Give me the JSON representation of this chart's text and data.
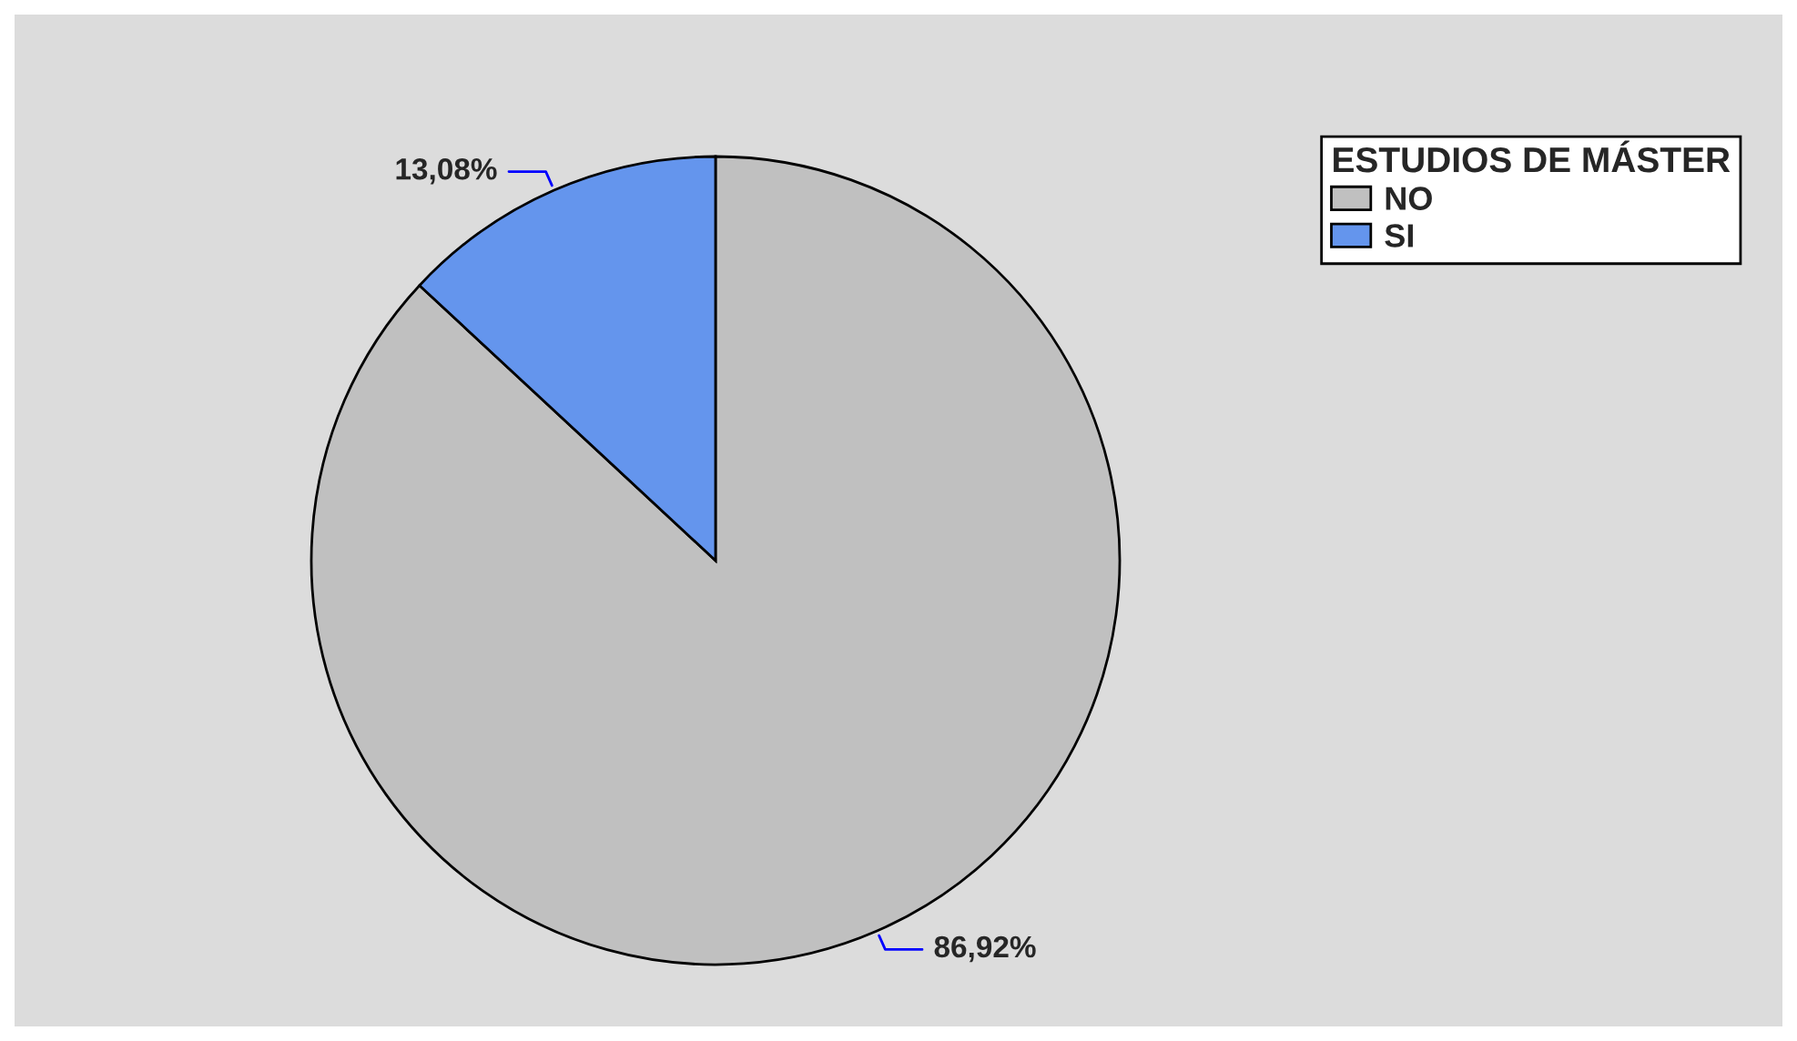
{
  "chart_data": {
    "type": "pie",
    "legend_title": "ESTUDIOS DE MÁSTER",
    "categories": [
      "NO",
      "SI"
    ],
    "values": [
      86.92,
      13.08
    ],
    "colors": [
      "#c0c0c0",
      "#6495ed"
    ],
    "value_labels": [
      "86,92%",
      "13,08%"
    ],
    "legend": "top right"
  }
}
